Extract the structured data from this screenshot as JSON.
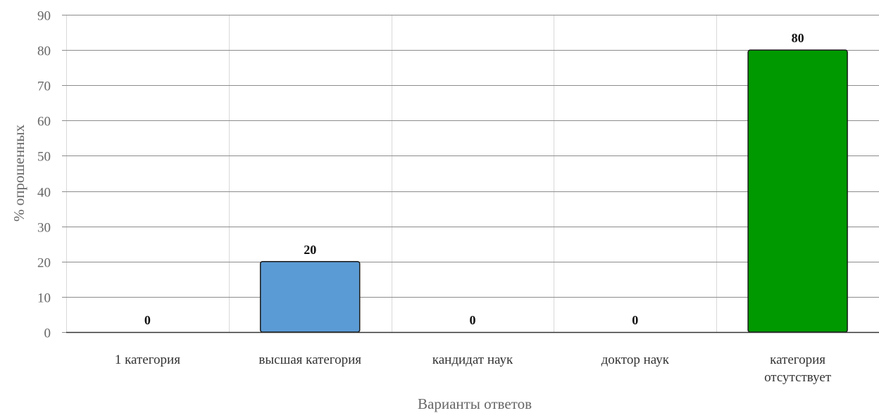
{
  "chart_data": {
    "type": "bar",
    "title": "",
    "xlabel": "Варианты ответов",
    "ylabel": "% опрошенных",
    "categories": [
      [
        "1 категория"
      ],
      [
        "высшая категория"
      ],
      [
        "кандидат наук"
      ],
      [
        "доктор наук"
      ],
      [
        "категория",
        "отсутствует"
      ]
    ],
    "values": [
      0,
      20,
      0,
      0,
      80
    ],
    "data_labels": [
      "0",
      "20",
      "0",
      "0",
      "80"
    ],
    "bar_colors": [
      "#5b9bd5",
      "#5b9bd5",
      "#5b9bd5",
      "#5b9bd5",
      "#009900"
    ],
    "ylim": [
      0,
      90
    ],
    "yticks": [
      0,
      10,
      20,
      30,
      40,
      50,
      60,
      70,
      80,
      90
    ],
    "grid": true,
    "legend": "none"
  }
}
